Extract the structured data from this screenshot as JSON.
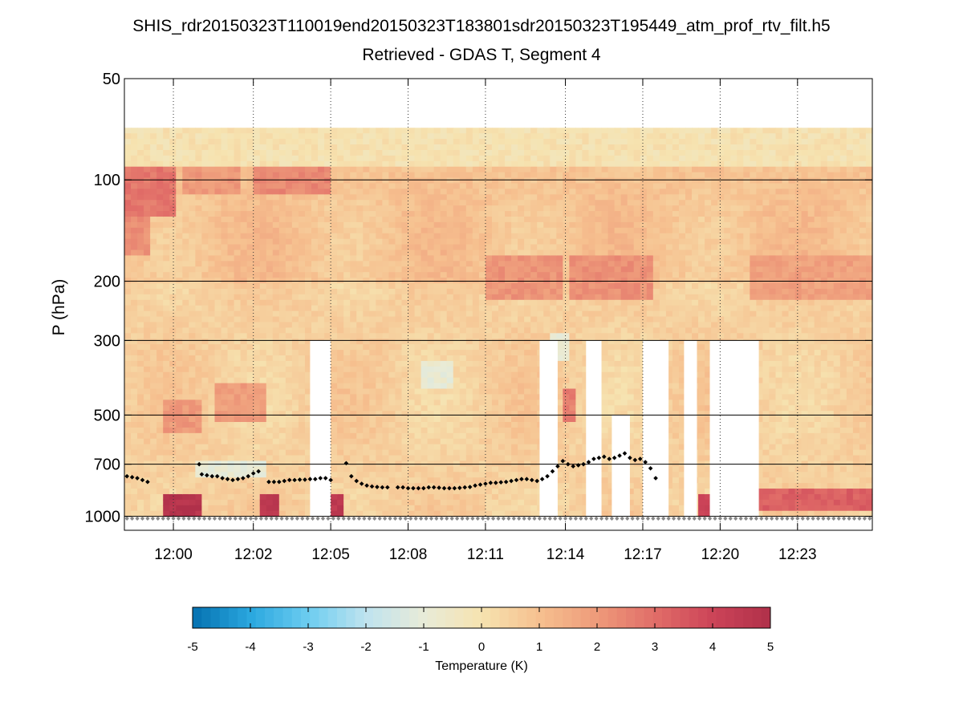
{
  "chart_data": {
    "type": "heatmap",
    "title": "SHIS_rdr20150323T110019end20150323T183801sdr20150323T195449_atm_prof_rtv_filt.h5",
    "subtitle": "Retrieved - GDAS T, Segment 4",
    "ylabel": "P (hPa)",
    "y_scale": "log",
    "y_reversed": true,
    "ylim": [
      50,
      1100
    ],
    "y_ticks": [
      50,
      100,
      200,
      300,
      500,
      700,
      1000
    ],
    "y_tick_labels": [
      "50",
      "100",
      "200",
      "300",
      "500",
      "700",
      "1000"
    ],
    "x_tick_labels": [
      "12:00",
      "12:02",
      "12:05",
      "12:08",
      "12:11",
      "12:14",
      "12:17",
      "12:20",
      "12:23"
    ],
    "x_tick_positions_min": [
      1.9,
      5.0,
      8.0,
      11.0,
      14.0,
      17.1,
      20.1,
      23.1,
      26.1
    ],
    "xlim_min": [
      0,
      29
    ],
    "grid": "dotted-x, solid-y",
    "colorbar": {
      "label": "Temperature (K)",
      "min": -5,
      "max": 5,
      "ticks": [
        -5,
        -4,
        -3,
        -2,
        -1,
        0,
        1,
        2,
        3,
        4,
        5
      ],
      "tick_labels": [
        "-5",
        "-4",
        "-3",
        "-2",
        "-1",
        "0",
        "1",
        "2",
        "3",
        "4",
        "5"
      ],
      "colors": [
        "#0571b0",
        "#2aa7df",
        "#6ccdf0",
        "#bfe3ef",
        "#e8ebd8",
        "#f6e3b0",
        "#f6c08f",
        "#ee9a7a",
        "#e16d68",
        "#cc4458",
        "#b0304a"
      ]
    },
    "field": {
      "top_pressure": 70,
      "bottom_pressure": 1000,
      "data_gaps": [
        {
          "t0": 7.2,
          "t1": 8.0,
          "p_top": 300
        },
        {
          "t0": 16.1,
          "t1": 16.8,
          "p_top": 300
        },
        {
          "t0": 17.9,
          "t1": 18.5,
          "p_top": 300
        },
        {
          "t0": 18.9,
          "t1": 19.6,
          "p_top": 500
        },
        {
          "t0": 20.1,
          "t1": 21.1,
          "p_top": 300
        },
        {
          "t0": 21.7,
          "t1": 22.2,
          "p_top": 300
        },
        {
          "t0": 22.7,
          "t1": 24.6,
          "p_top": 300
        }
      ],
      "features": [
        {
          "t0": 0,
          "t1": 2.0,
          "p0": 70,
          "p1": 130,
          "v": 2.8
        },
        {
          "t0": 2.2,
          "t1": 4.4,
          "p0": 70,
          "p1": 110,
          "v": 2.0
        },
        {
          "t0": 5.0,
          "t1": 8.0,
          "p0": 70,
          "p1": 110,
          "v": 2.4
        },
        {
          "t0": 0,
          "t1": 1.0,
          "p0": 130,
          "p1": 170,
          "v": 2.2
        },
        {
          "t0": 14.0,
          "t1": 17.0,
          "p0": 170,
          "p1": 230,
          "v": 2.1
        },
        {
          "t0": 17.3,
          "t1": 20.5,
          "p0": 170,
          "p1": 230,
          "v": 2.2
        },
        {
          "t0": 24.2,
          "t1": 29,
          "p0": 170,
          "p1": 230,
          "v": 1.8
        },
        {
          "t0": 1.6,
          "t1": 3.0,
          "p0": 450,
          "p1": 560,
          "v": 2.0
        },
        {
          "t0": 3.6,
          "t1": 5.6,
          "p0": 400,
          "p1": 520,
          "v": 1.9
        },
        {
          "t0": 17.0,
          "t1": 17.5,
          "p0": 420,
          "p1": 520,
          "v": 2.6
        },
        {
          "t0": 1.5,
          "t1": 3.0,
          "p0": 860,
          "p1": 990,
          "v": 4.8
        },
        {
          "t0": 5.2,
          "t1": 6.0,
          "p0": 850,
          "p1": 990,
          "v": 4.6
        },
        {
          "t0": 8.1,
          "t1": 8.6,
          "p0": 870,
          "p1": 990,
          "v": 4.5
        },
        {
          "t0": 22.2,
          "t1": 22.7,
          "p0": 860,
          "p1": 990,
          "v": 4.0
        },
        {
          "t0": 24.6,
          "t1": 29,
          "p0": 840,
          "p1": 960,
          "v": 3.3
        },
        {
          "t0": 0,
          "t1": 29,
          "p0": 70,
          "p1": 90,
          "v": 0.0
        },
        {
          "t0": 2.8,
          "t1": 5.6,
          "p0": 690,
          "p1": 780,
          "v": -1.0
        },
        {
          "t0": 11.6,
          "t1": 12.8,
          "p0": 340,
          "p1": 420,
          "v": -0.9
        },
        {
          "t0": 16.4,
          "t1": 17.3,
          "p0": 290,
          "p1": 350,
          "v": -1.0
        }
      ]
    },
    "series": [
      {
        "style": "black-diamond",
        "points": [
          [
            0.1,
            760
          ],
          [
            0.3,
            765
          ],
          [
            0.5,
            770
          ],
          [
            0.7,
            780
          ],
          [
            0.9,
            790
          ],
          [
            2.9,
            700
          ],
          [
            3.0,
            750
          ],
          [
            3.2,
            755
          ],
          [
            3.4,
            760
          ],
          [
            3.6,
            760
          ],
          [
            3.8,
            770
          ],
          [
            4.0,
            775
          ],
          [
            4.2,
            780
          ],
          [
            4.4,
            775
          ],
          [
            4.6,
            770
          ],
          [
            4.8,
            760
          ],
          [
            5.0,
            745
          ],
          [
            5.2,
            735
          ],
          [
            5.6,
            790
          ],
          [
            5.8,
            790
          ],
          [
            6.0,
            790
          ],
          [
            6.2,
            785
          ],
          [
            6.4,
            780
          ],
          [
            6.6,
            780
          ],
          [
            6.8,
            778
          ],
          [
            7.0,
            778
          ],
          [
            7.2,
            775
          ],
          [
            7.4,
            775
          ],
          [
            7.6,
            770
          ],
          [
            7.8,
            770
          ],
          [
            8.0,
            780
          ],
          [
            8.6,
            695
          ],
          [
            8.8,
            760
          ],
          [
            9.0,
            785
          ],
          [
            9.2,
            800
          ],
          [
            9.4,
            810
          ],
          [
            9.6,
            815
          ],
          [
            9.8,
            818
          ],
          [
            10.0,
            820
          ],
          [
            10.2,
            820
          ],
          [
            10.6,
            820
          ],
          [
            10.8,
            820
          ],
          [
            11.0,
            825
          ],
          [
            11.2,
            825
          ],
          [
            11.4,
            825
          ],
          [
            11.6,
            825
          ],
          [
            11.8,
            820
          ],
          [
            12.0,
            820
          ],
          [
            12.2,
            822
          ],
          [
            12.4,
            825
          ],
          [
            12.6,
            825
          ],
          [
            12.8,
            825
          ],
          [
            13.0,
            823
          ],
          [
            13.2,
            820
          ],
          [
            13.4,
            818
          ],
          [
            13.6,
            810
          ],
          [
            13.8,
            805
          ],
          [
            14.0,
            800
          ],
          [
            14.2,
            795
          ],
          [
            14.4,
            795
          ],
          [
            14.6,
            792
          ],
          [
            14.8,
            790
          ],
          [
            15.0,
            785
          ],
          [
            15.2,
            780
          ],
          [
            15.4,
            775
          ],
          [
            15.6,
            775
          ],
          [
            15.8,
            780
          ],
          [
            16.0,
            785
          ],
          [
            16.2,
            775
          ],
          [
            16.4,
            760
          ],
          [
            16.6,
            735
          ],
          [
            16.8,
            710
          ],
          [
            17.0,
            685
          ],
          [
            17.2,
            700
          ],
          [
            17.4,
            710
          ],
          [
            17.6,
            705
          ],
          [
            17.8,
            700
          ],
          [
            18.0,
            690
          ],
          [
            18.2,
            675
          ],
          [
            18.4,
            670
          ],
          [
            18.6,
            665
          ],
          [
            18.8,
            675
          ],
          [
            19.0,
            670
          ],
          [
            19.2,
            660
          ],
          [
            19.4,
            650
          ],
          [
            19.6,
            670
          ],
          [
            19.8,
            680
          ],
          [
            20.0,
            675
          ],
          [
            20.2,
            690
          ],
          [
            20.4,
            720
          ],
          [
            20.6,
            770
          ]
        ]
      },
      {
        "style": "grey-diamond",
        "points_pressure": 1015
      }
    ]
  }
}
